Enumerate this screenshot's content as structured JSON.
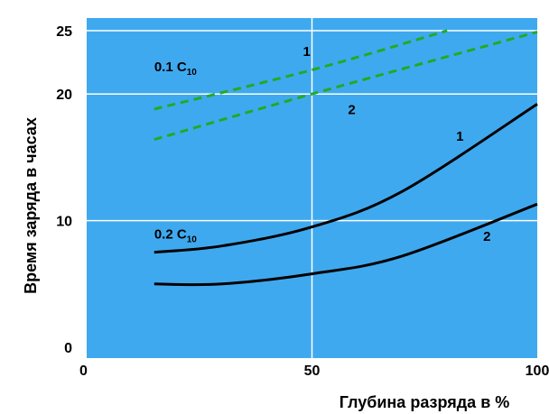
{
  "chart_data": {
    "type": "line",
    "xlabel": "Глубина разряда в %",
    "ylabel": "Время заряда в часах",
    "xlim": [
      0,
      100
    ],
    "ylim": [
      0,
      25
    ],
    "x_ticks": [
      "0",
      "50",
      "100"
    ],
    "y_ticks": [
      "0",
      "10",
      "20",
      "25"
    ],
    "grid": true,
    "colors": {
      "plot_background": "#3fa9ef",
      "grid": "#ffffff",
      "solid_series": "#000000",
      "dashed_series": "#22aa22"
    },
    "series": [
      {
        "group": "0.1 C10",
        "curve": "1",
        "style": "dashed",
        "x": [
          15,
          50,
          80
        ],
        "y": [
          18.8,
          21.9,
          25.0
        ]
      },
      {
        "group": "0.1 C10",
        "curve": "2",
        "style": "dashed",
        "x": [
          15,
          50,
          100
        ],
        "y": [
          16.4,
          20.0,
          24.9
        ]
      },
      {
        "group": "0.2 C10",
        "curve": "1",
        "style": "solid",
        "x": [
          15,
          30,
          50,
          70,
          100
        ],
        "y": [
          7.5,
          8.0,
          9.5,
          12.3,
          19.2
        ]
      },
      {
        "group": "0.2 C10",
        "curve": "2",
        "style": "solid",
        "x": [
          15,
          30,
          50,
          70,
          100
        ],
        "y": [
          5.0,
          5.0,
          5.8,
          7.2,
          11.3
        ]
      }
    ],
    "annotations": [
      {
        "text": "0.1 C",
        "sub": "10",
        "x": 15,
        "y": 21.8
      },
      {
        "text": "1",
        "x": 48,
        "y": 23.0
      },
      {
        "text": "2",
        "x": 58,
        "y": 18.4
      },
      {
        "text": "0.2 C",
        "sub": "10",
        "x": 15,
        "y": 8.6
      },
      {
        "text": "1",
        "x": 82,
        "y": 16.3
      },
      {
        "text": "2",
        "x": 88,
        "y": 8.4
      }
    ]
  }
}
